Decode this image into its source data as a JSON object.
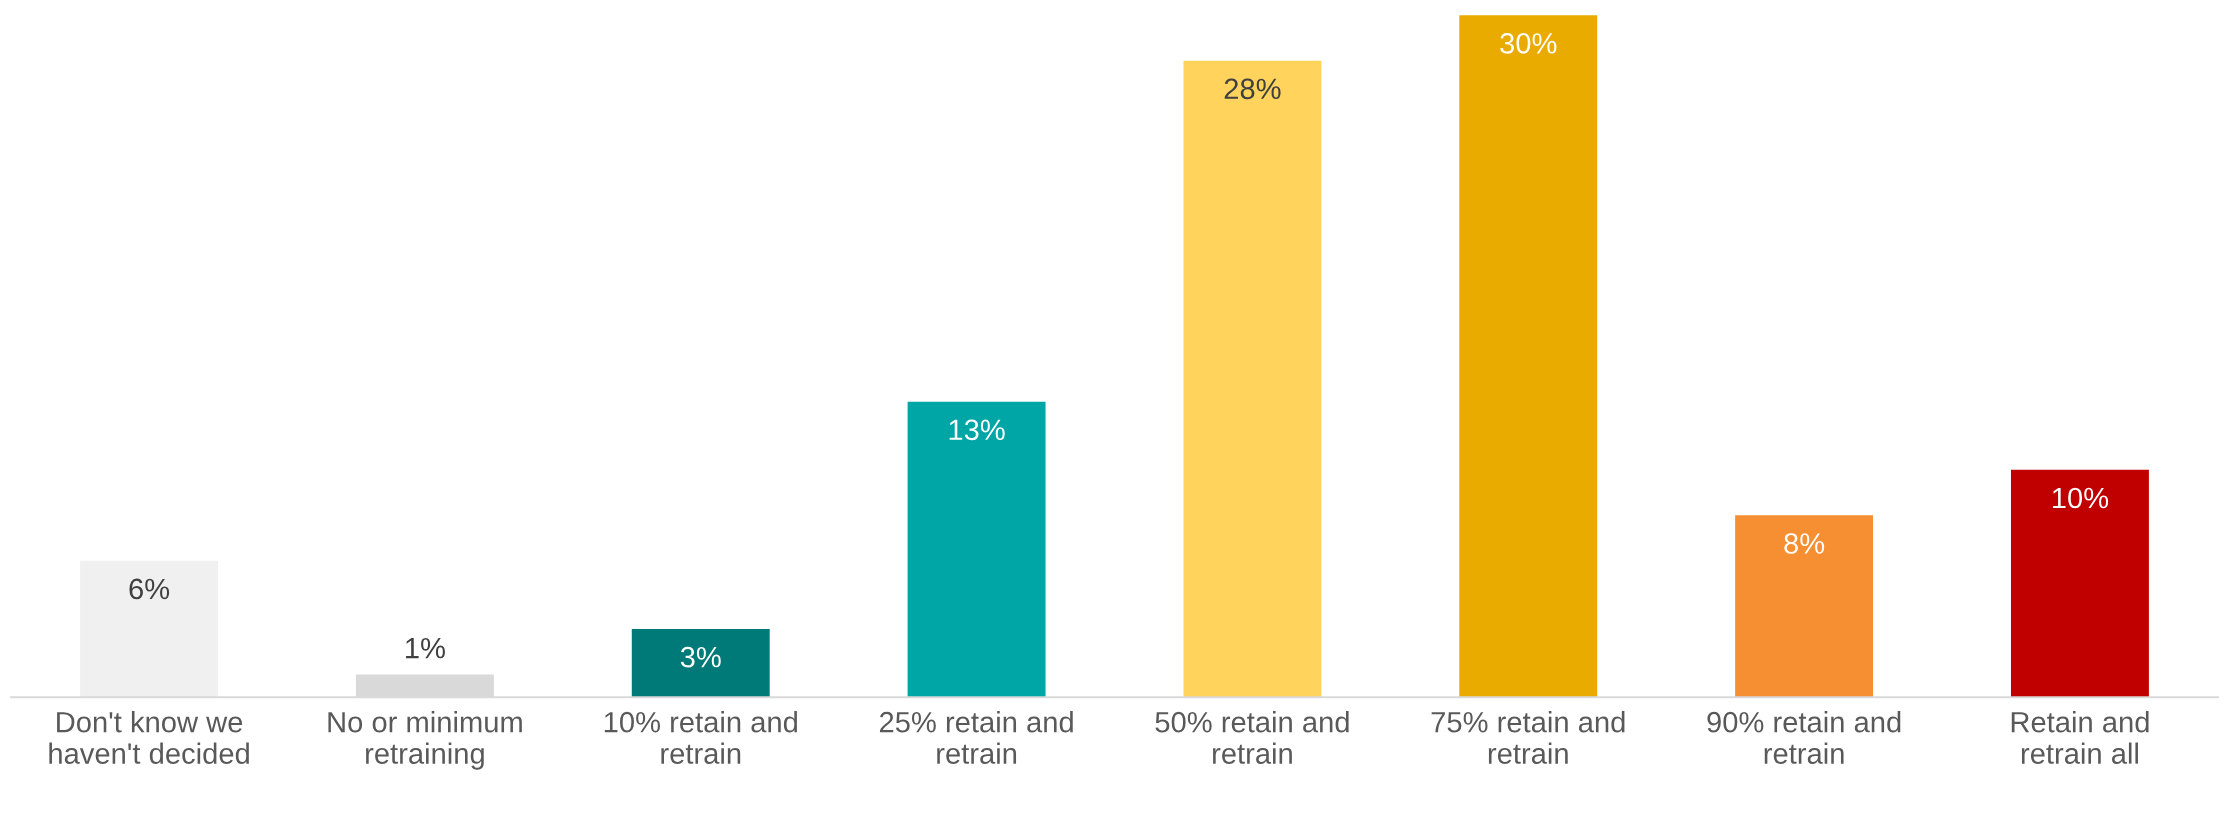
{
  "chart_data": {
    "type": "bar",
    "categories": [
      "Don't know we haven't decided",
      "No or minimum retraining",
      "10% retain and retrain",
      "25% retain and retrain",
      "50% retain and retrain",
      "75% retain and retrain",
      "90% retain and retrain",
      "Retain and retrain all"
    ],
    "values": [
      6,
      1,
      3,
      13,
      28,
      30,
      8,
      10
    ],
    "value_labels": [
      "6%",
      "1%",
      "3%",
      "13%",
      "28%",
      "30%",
      "8%",
      "10%"
    ],
    "colors": [
      "#f0f0f0",
      "#d9d9d9",
      "#007a78",
      "#00a5a5",
      "#ffd35c",
      "#eaab00",
      "#f58f31",
      "#c00000"
    ],
    "grid": false,
    "legend": false
  }
}
